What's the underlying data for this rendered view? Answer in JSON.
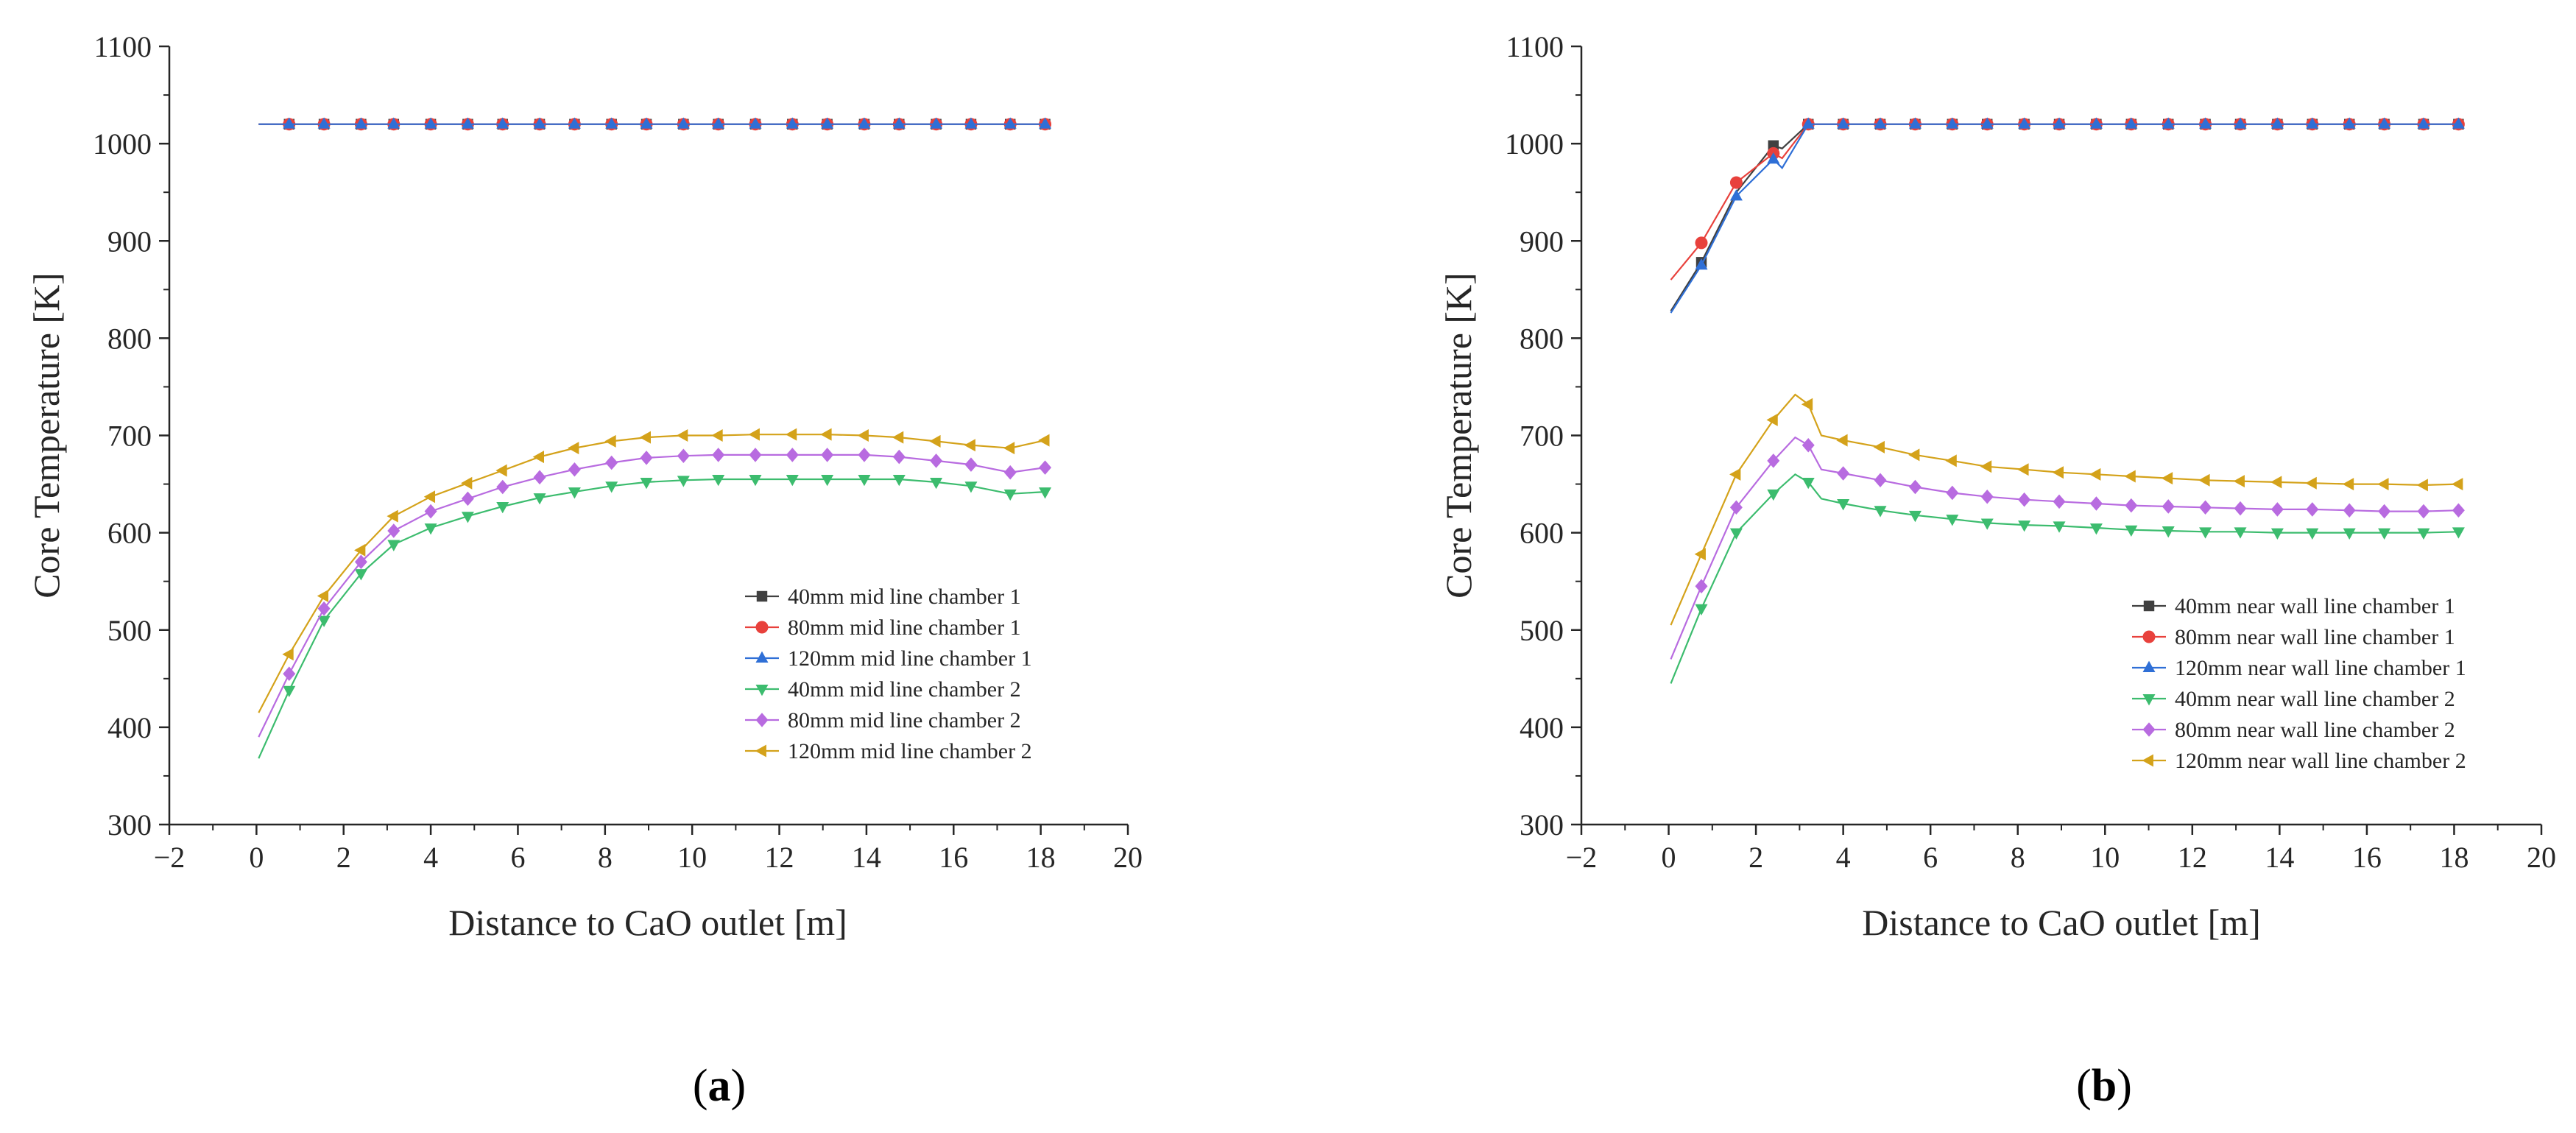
{
  "chart_data": [
    {
      "type": "line",
      "panel_label_open": "(",
      "panel_label_letter": "a",
      "panel_label_close": ")",
      "xlabel": "Distance to  CaO outlet [m]",
      "ylabel": "Core Temperature [K]",
      "xlim": [
        -2,
        20
      ],
      "ylim": [
        300,
        1100
      ],
      "xticks": [
        -2,
        0,
        2,
        4,
        6,
        8,
        10,
        12,
        14,
        16,
        18,
        20
      ],
      "yticks": [
        300,
        400,
        500,
        600,
        700,
        800,
        900,
        1000,
        1100
      ],
      "legend_position": "bottom-right",
      "series": [
        {
          "name": "40mm mid line chamber 1",
          "color": "#404040",
          "marker": "square",
          "x": [
            0.05,
            0.75,
            1.55,
            2.4,
            3.15,
            4.0,
            4.85,
            5.65,
            6.5,
            7.3,
            8.15,
            8.95,
            9.8,
            10.6,
            11.45,
            12.3,
            13.1,
            13.95,
            14.75,
            15.6,
            16.4,
            17.3,
            18.1
          ],
          "y": [
            1020,
            1020,
            1020,
            1020,
            1020,
            1020,
            1020,
            1020,
            1020,
            1020,
            1020,
            1020,
            1020,
            1020,
            1020,
            1020,
            1020,
            1020,
            1020,
            1020,
            1020,
            1020,
            1020
          ]
        },
        {
          "name": "80mm mid line chamber 1",
          "color": "#e8413c",
          "marker": "circle",
          "x": [
            0.05,
            0.75,
            1.55,
            2.4,
            3.15,
            4.0,
            4.85,
            5.65,
            6.5,
            7.3,
            8.15,
            8.95,
            9.8,
            10.6,
            11.45,
            12.3,
            13.1,
            13.95,
            14.75,
            15.6,
            16.4,
            17.3,
            18.1
          ],
          "y": [
            1020,
            1020,
            1020,
            1020,
            1020,
            1020,
            1020,
            1020,
            1020,
            1020,
            1020,
            1020,
            1020,
            1020,
            1020,
            1020,
            1020,
            1020,
            1020,
            1020,
            1020,
            1020,
            1020
          ]
        },
        {
          "name": "120mm mid line chamber 1",
          "color": "#2f6fd6",
          "marker": "triangle-up",
          "x": [
            0.05,
            0.75,
            1.55,
            2.4,
            3.15,
            4.0,
            4.85,
            5.65,
            6.5,
            7.3,
            8.15,
            8.95,
            9.8,
            10.6,
            11.45,
            12.3,
            13.1,
            13.95,
            14.75,
            15.6,
            16.4,
            17.3,
            18.1
          ],
          "y": [
            1020,
            1020,
            1020,
            1020,
            1020,
            1020,
            1020,
            1020,
            1020,
            1020,
            1020,
            1020,
            1020,
            1020,
            1020,
            1020,
            1020,
            1020,
            1020,
            1020,
            1020,
            1020,
            1020
          ]
        },
        {
          "name": "40mm mid line chamber 2",
          "color": "#3cbc6e",
          "marker": "triangle-down",
          "x": [
            0.05,
            0.75,
            1.55,
            2.4,
            3.15,
            4.0,
            4.85,
            5.65,
            6.5,
            7.3,
            8.15,
            8.95,
            9.8,
            10.6,
            11.45,
            12.3,
            13.1,
            13.95,
            14.75,
            15.6,
            16.4,
            17.3,
            18.1
          ],
          "y": [
            368,
            438,
            510,
            558,
            588,
            605,
            617,
            627,
            636,
            642,
            648,
            652,
            654,
            655,
            655,
            655,
            655,
            655,
            655,
            652,
            648,
            640,
            642
          ]
        },
        {
          "name": "80mm mid line chamber 2",
          "color": "#b86be0",
          "marker": "diamond",
          "x": [
            0.05,
            0.75,
            1.55,
            2.4,
            3.15,
            4.0,
            4.85,
            5.65,
            6.5,
            7.3,
            8.15,
            8.95,
            9.8,
            10.6,
            11.45,
            12.3,
            13.1,
            13.95,
            14.75,
            15.6,
            16.4,
            17.3,
            18.1
          ],
          "y": [
            390,
            455,
            522,
            570,
            602,
            622,
            635,
            647,
            657,
            665,
            672,
            677,
            679,
            680,
            680,
            680,
            680,
            680,
            678,
            674,
            670,
            662,
            667
          ]
        },
        {
          "name": "120mm mid line chamber 2",
          "color": "#d4a21a",
          "marker": "triangle-left",
          "x": [
            0.05,
            0.75,
            1.55,
            2.4,
            3.15,
            4.0,
            4.85,
            5.65,
            6.5,
            7.3,
            8.15,
            8.95,
            9.8,
            10.6,
            11.45,
            12.3,
            13.1,
            13.95,
            14.75,
            15.6,
            16.4,
            17.3,
            18.1
          ],
          "y": [
            415,
            475,
            535,
            582,
            617,
            637,
            651,
            664,
            678,
            687,
            694,
            698,
            700,
            700,
            701,
            701,
            701,
            700,
            698,
            694,
            690,
            687,
            695
          ]
        }
      ]
    },
    {
      "type": "line",
      "panel_label_open": "(",
      "panel_label_letter": "b",
      "panel_label_close": ")",
      "xlabel": "Distance to  CaO outlet [m]",
      "ylabel": "Core Temperature [K]",
      "xlim": [
        -2,
        20
      ],
      "ylim": [
        300,
        1100
      ],
      "xticks": [
        -2,
        0,
        2,
        4,
        6,
        8,
        10,
        12,
        14,
        16,
        18,
        20
      ],
      "yticks": [
        300,
        400,
        500,
        600,
        700,
        800,
        900,
        1000,
        1100
      ],
      "legend_position": "bottom-right",
      "series": [
        {
          "name": "40mm near wall line chamber 1",
          "color": "#404040",
          "marker": "square",
          "x": [
            0.05,
            0.75,
            1.55,
            2.4,
            2.6,
            3.2,
            4.0,
            4.85,
            5.65,
            6.5,
            7.3,
            8.15,
            8.95,
            9.8,
            10.6,
            11.45,
            12.3,
            13.1,
            13.95,
            14.75,
            15.6,
            16.4,
            17.3,
            18.1
          ],
          "y": [
            828,
            878,
            950,
            998,
            995,
            1020,
            1020,
            1020,
            1020,
            1020,
            1020,
            1020,
            1020,
            1020,
            1020,
            1020,
            1020,
            1020,
            1020,
            1020,
            1020,
            1020,
            1020,
            1020
          ],
          "markers_at": [
            1,
            3,
            5,
            6,
            7,
            8,
            9,
            10,
            11,
            12,
            13,
            14,
            15,
            16,
            17,
            18,
            19,
            20,
            21,
            22,
            23
          ]
        },
        {
          "name": "80mm near wall line chamber 1",
          "color": "#e8413c",
          "marker": "circle",
          "x": [
            0.05,
            0.75,
            1.55,
            2.4,
            2.6,
            3.2,
            4.0,
            4.85,
            5.65,
            6.5,
            7.3,
            8.15,
            8.95,
            9.8,
            10.6,
            11.45,
            12.3,
            13.1,
            13.95,
            14.75,
            15.6,
            16.4,
            17.3,
            18.1
          ],
          "y": [
            860,
            898,
            960,
            990,
            985,
            1020,
            1020,
            1020,
            1020,
            1020,
            1020,
            1020,
            1020,
            1020,
            1020,
            1020,
            1020,
            1020,
            1020,
            1020,
            1020,
            1020,
            1020,
            1020
          ],
          "markers_at": [
            1,
            2,
            3,
            5,
            6,
            7,
            8,
            9,
            10,
            11,
            12,
            13,
            14,
            15,
            16,
            17,
            18,
            19,
            20,
            21,
            22,
            23
          ]
        },
        {
          "name": "120mm near wall line chamber 1",
          "color": "#2f6fd6",
          "marker": "triangle-up",
          "x": [
            0.05,
            0.75,
            1.55,
            2.4,
            2.6,
            3.2,
            4.0,
            4.85,
            5.65,
            6.5,
            7.3,
            8.15,
            8.95,
            9.8,
            10.6,
            11.45,
            12.3,
            13.1,
            13.95,
            14.75,
            15.6,
            16.4,
            17.3,
            18.1
          ],
          "y": [
            826,
            875,
            946,
            984,
            975,
            1020,
            1020,
            1020,
            1020,
            1020,
            1020,
            1020,
            1020,
            1020,
            1020,
            1020,
            1020,
            1020,
            1020,
            1020,
            1020,
            1020,
            1020,
            1020
          ],
          "markers_at": [
            1,
            2,
            3,
            5,
            6,
            7,
            8,
            9,
            10,
            11,
            12,
            13,
            14,
            15,
            16,
            17,
            18,
            19,
            20,
            21,
            22,
            23
          ]
        },
        {
          "name": "40mm near wall line chamber 2",
          "color": "#3cbc6e",
          "marker": "triangle-down",
          "x": [
            0.05,
            0.75,
            1.55,
            2.4,
            2.9,
            3.2,
            3.5,
            4.0,
            4.85,
            5.65,
            6.5,
            7.3,
            8.15,
            8.95,
            9.8,
            10.6,
            11.45,
            12.3,
            13.1,
            13.95,
            14.75,
            15.6,
            16.4,
            17.3,
            18.1
          ],
          "y": [
            445,
            522,
            600,
            640,
            660,
            652,
            635,
            630,
            623,
            618,
            614,
            610,
            608,
            607,
            605,
            603,
            602,
            601,
            601,
            600,
            600,
            600,
            600,
            600,
            601
          ],
          "markers_at": [
            1,
            2,
            3,
            5,
            7,
            8,
            9,
            10,
            11,
            12,
            13,
            14,
            15,
            16,
            17,
            18,
            19,
            20,
            21,
            22,
            23,
            24
          ]
        },
        {
          "name": "80mm near wall line chamber 2",
          "color": "#b86be0",
          "marker": "diamond",
          "x": [
            0.05,
            0.75,
            1.55,
            2.4,
            2.9,
            3.2,
            3.5,
            4.0,
            4.85,
            5.65,
            6.5,
            7.3,
            8.15,
            8.95,
            9.8,
            10.6,
            11.45,
            12.3,
            13.1,
            13.95,
            14.75,
            15.6,
            16.4,
            17.3,
            18.1
          ],
          "y": [
            470,
            545,
            626,
            674,
            698,
            690,
            665,
            661,
            654,
            647,
            641,
            637,
            634,
            632,
            630,
            628,
            627,
            626,
            625,
            624,
            624,
            623,
            622,
            622,
            623
          ],
          "markers_at": [
            1,
            2,
            3,
            5,
            7,
            8,
            9,
            10,
            11,
            12,
            13,
            14,
            15,
            16,
            17,
            18,
            19,
            20,
            21,
            22,
            23,
            24
          ]
        },
        {
          "name": "120mm near wall line chamber 2",
          "color": "#d4a21a",
          "marker": "triangle-left",
          "x": [
            0.05,
            0.75,
            1.55,
            2.4,
            2.9,
            3.2,
            3.5,
            4.0,
            4.85,
            5.65,
            6.5,
            7.3,
            8.15,
            8.95,
            9.8,
            10.6,
            11.45,
            12.3,
            13.1,
            13.95,
            14.75,
            15.6,
            16.4,
            17.3,
            18.1
          ],
          "y": [
            505,
            578,
            660,
            716,
            742,
            732,
            700,
            695,
            688,
            680,
            674,
            668,
            665,
            662,
            660,
            658,
            656,
            654,
            653,
            652,
            651,
            650,
            650,
            649,
            650
          ],
          "markers_at": [
            1,
            2,
            3,
            5,
            7,
            8,
            9,
            10,
            11,
            12,
            13,
            14,
            15,
            16,
            17,
            18,
            19,
            20,
            21,
            22,
            23,
            24
          ]
        }
      ]
    }
  ]
}
